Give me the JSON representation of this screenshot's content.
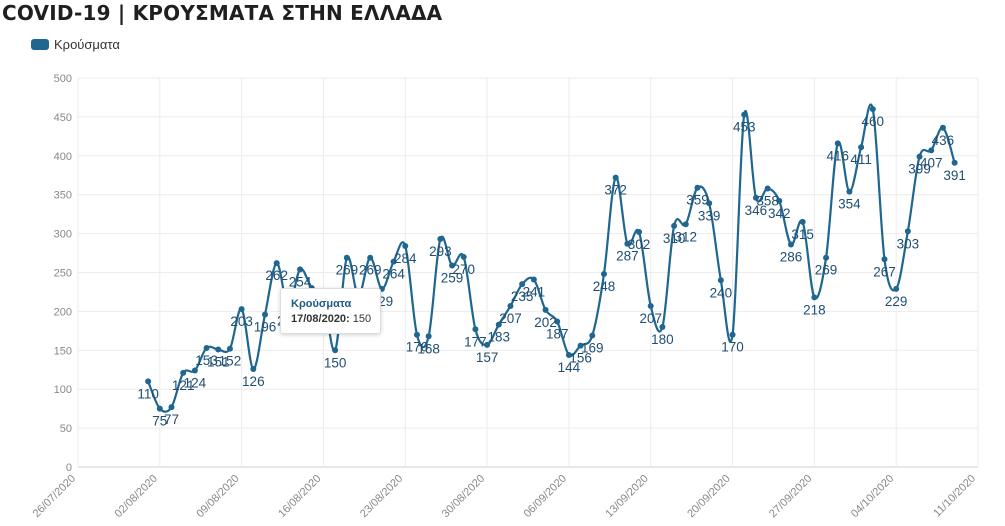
{
  "chart_data": {
    "type": "line",
    "title": "COVID-19 | ΚΡΟΥΣΜΑΤΑ ΣΤΗΝ ΕΛΛΑΔΑ",
    "series_name": "Κρούσματα",
    "color": "#1f6690",
    "ylim": [
      0,
      500
    ],
    "yticks": [
      0,
      50,
      100,
      150,
      200,
      250,
      300,
      350,
      400,
      450,
      500
    ],
    "x_start": "2020-07-26",
    "x_end": "2020-10-11",
    "xticks": [
      "26/07/2020",
      "02/08/2020",
      "09/08/2020",
      "16/08/2020",
      "23/08/2020",
      "30/08/2020",
      "06/09/2020",
      "13/09/2020",
      "20/09/2020",
      "27/09/2020",
      "04/10/2020",
      "11/10/2020"
    ],
    "grid": true,
    "legend": "top-left",
    "points": [
      {
        "date": "2020-08-01",
        "value": 110
      },
      {
        "date": "2020-08-02",
        "value": 75
      },
      {
        "date": "2020-08-03",
        "value": 77
      },
      {
        "date": "2020-08-04",
        "value": 121
      },
      {
        "date": "2020-08-05",
        "value": 124
      },
      {
        "date": "2020-08-06",
        "value": 153
      },
      {
        "date": "2020-08-07",
        "value": 151
      },
      {
        "date": "2020-08-08",
        "value": 152
      },
      {
        "date": "2020-08-09",
        "value": 203
      },
      {
        "date": "2020-08-10",
        "value": 126
      },
      {
        "date": "2020-08-11",
        "value": 196
      },
      {
        "date": "2020-08-12",
        "value": 262
      },
      {
        "date": "2020-08-13",
        "value": 204
      },
      {
        "date": "2020-08-14",
        "value": 254
      },
      {
        "date": "2020-08-15",
        "value": 230
      },
      {
        "date": "2020-08-16",
        "value": 217
      },
      {
        "date": "2020-08-17",
        "value": 150
      },
      {
        "date": "2020-08-18",
        "value": 269
      },
      {
        "date": "2020-08-19",
        "value": 220
      },
      {
        "date": "2020-08-20",
        "value": 269
      },
      {
        "date": "2020-08-21",
        "value": 229
      },
      {
        "date": "2020-08-22",
        "value": 264
      },
      {
        "date": "2020-08-23",
        "value": 284
      },
      {
        "date": "2020-08-24",
        "value": 170
      },
      {
        "date": "2020-08-25",
        "value": 168
      },
      {
        "date": "2020-08-26",
        "value": 293
      },
      {
        "date": "2020-08-27",
        "value": 259
      },
      {
        "date": "2020-08-28",
        "value": 270
      },
      {
        "date": "2020-08-29",
        "value": 177
      },
      {
        "date": "2020-08-30",
        "value": 157
      },
      {
        "date": "2020-08-31",
        "value": 183
      },
      {
        "date": "2020-09-01",
        "value": 207
      },
      {
        "date": "2020-09-02",
        "value": 235
      },
      {
        "date": "2020-09-03",
        "value": 241
      },
      {
        "date": "2020-09-04",
        "value": 202
      },
      {
        "date": "2020-09-05",
        "value": 187
      },
      {
        "date": "2020-09-06",
        "value": 144
      },
      {
        "date": "2020-09-07",
        "value": 156
      },
      {
        "date": "2020-09-08",
        "value": 169
      },
      {
        "date": "2020-09-09",
        "value": 248
      },
      {
        "date": "2020-09-10",
        "value": 372
      },
      {
        "date": "2020-09-11",
        "value": 287
      },
      {
        "date": "2020-09-12",
        "value": 302
      },
      {
        "date": "2020-09-13",
        "value": 207
      },
      {
        "date": "2020-09-14",
        "value": 180
      },
      {
        "date": "2020-09-15",
        "value": 310
      },
      {
        "date": "2020-09-16",
        "value": 312
      },
      {
        "date": "2020-09-17",
        "value": 359
      },
      {
        "date": "2020-09-18",
        "value": 339
      },
      {
        "date": "2020-09-19",
        "value": 240
      },
      {
        "date": "2020-09-20",
        "value": 170
      },
      {
        "date": "2020-09-21",
        "value": 453
      },
      {
        "date": "2020-09-22",
        "value": 346
      },
      {
        "date": "2020-09-23",
        "value": 358
      },
      {
        "date": "2020-09-24",
        "value": 342
      },
      {
        "date": "2020-09-25",
        "value": 286
      },
      {
        "date": "2020-09-26",
        "value": 315
      },
      {
        "date": "2020-09-27",
        "value": 218
      },
      {
        "date": "2020-09-28",
        "value": 269
      },
      {
        "date": "2020-09-29",
        "value": 416
      },
      {
        "date": "2020-09-30",
        "value": 354
      },
      {
        "date": "2020-10-01",
        "value": 411
      },
      {
        "date": "2020-10-02",
        "value": 460
      },
      {
        "date": "2020-10-03",
        "value": 267
      },
      {
        "date": "2020-10-04",
        "value": 229
      },
      {
        "date": "2020-10-05",
        "value": 303
      },
      {
        "date": "2020-10-06",
        "value": 399
      },
      {
        "date": "2020-10-07",
        "value": 407
      },
      {
        "date": "2020-10-08",
        "value": 436
      },
      {
        "date": "2020-10-09",
        "value": 391
      }
    ],
    "tooltip": {
      "series": "Κρούσματα",
      "date": "17/08/2020:",
      "value": "150"
    }
  }
}
